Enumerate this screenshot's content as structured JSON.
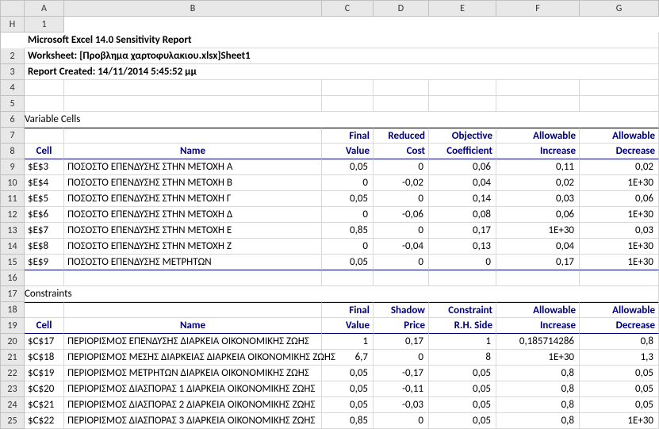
{
  "cols": [
    "A",
    "B",
    "C",
    "D",
    "E",
    "F",
    "G",
    "H"
  ],
  "title1": "Microsoft Excel 14.0 Sensitivity Report",
  "title2": "Worksheet: [Προβλημα χαρτοφυλακιου.xlsx]Sheet1",
  "title3": "Report Created: 14/11/2014 5:45:52 μμ",
  "sec1": "Variable Cells",
  "sec2": "Constraints",
  "h1": {
    "cell": "Cell",
    "name": "Name",
    "fv": "Final",
    "fv2": "Value",
    "rc": "Reduced",
    "rc2": "Cost",
    "oc": "Objective",
    "oc2": "Coefficient",
    "ai": "Allowable",
    "ai2": "Increase",
    "ad": "Allowable",
    "ad2": "Decrease"
  },
  "h2": {
    "cell": "Cell",
    "name": "Name",
    "fv": "Final",
    "fv2": "Value",
    "sp": "Shadow",
    "sp2": "Price",
    "cr": "Constraint",
    "cr2": "R.H. Side",
    "ai": "Allowable",
    "ai2": "Increase",
    "ad": "Allowable",
    "ad2": "Decrease"
  },
  "vcells": [
    {
      "r": "9",
      "cell": "$E$3",
      "name": "ΠΟΣΟΣΤΟ ΕΠΕΝΔΥΣΗΣ ΣΤΗΝ ΜΕΤΟΧΗ Α",
      "fv": "0,05",
      "rc": "0",
      "oc": "0,06",
      "ai": "0,11",
      "ad": "0,02"
    },
    {
      "r": "10",
      "cell": "$E$4",
      "name": "ΠΟΣΟΣΤΟ ΕΠΕΝΔΥΣΗΣ ΣΤΗΝ ΜΕΤΟΧΗ Β",
      "fv": "0",
      "rc": "-0,02",
      "oc": "0,04",
      "ai": "0,02",
      "ad": "1E+30"
    },
    {
      "r": "11",
      "cell": "$E$5",
      "name": "ΠΟΣΟΣΤΟ ΕΠΕΝΔΥΣΗΣ ΣΤΗΝ ΜΕΤΟΧΗ Γ",
      "fv": "0,05",
      "rc": "0",
      "oc": "0,14",
      "ai": "0,03",
      "ad": "0,06"
    },
    {
      "r": "12",
      "cell": "$E$6",
      "name": "ΠΟΣΟΣΤΟ ΕΠΕΝΔΥΣΗΣ ΣΤΗΝ ΜΕΤΟΧΗ Δ",
      "fv": "0",
      "rc": "-0,06",
      "oc": "0,08",
      "ai": "0,06",
      "ad": "1E+30"
    },
    {
      "r": "13",
      "cell": "$E$7",
      "name": "ΠΟΣΟΣΤΟ ΕΠΕΝΔΥΣΗΣ ΣΤΗΝ ΜΕΤΟΧΗ Ε",
      "fv": "0,85",
      "rc": "0",
      "oc": "0,17",
      "ai": "1E+30",
      "ad": "0,03"
    },
    {
      "r": "14",
      "cell": "$E$8",
      "name": "ΠΟΣΟΣΤΟ ΕΠΕΝΔΥΣΗΣ ΣΤΗΝ ΜΕΤΟΧΗ Ζ",
      "fv": "0",
      "rc": "-0,04",
      "oc": "0,13",
      "ai": "0,04",
      "ad": "1E+30"
    },
    {
      "r": "15",
      "cell": "$E$9",
      "name": "ΠΟΣΟΣΤΟ ΕΠΕΝΔΥΣΗΣ ΜΕΤΡΗΤΩΝ",
      "fv": "0,05",
      "rc": "0",
      "oc": "0",
      "ai": "0,17",
      "ad": "1E+30"
    }
  ],
  "constraints": [
    {
      "r": "20",
      "cell": "$C$17",
      "name": "ΠΕΡΙΟΡΙΣΜΟΣ ΕΠΕΝΔΥΣΗΣ ΔΙΑΡΚΕΙΑ ΟΙΚΟΝΟΜΙΚΗΣ ΖΩΗΣ",
      "fv": "1",
      "sp": "0,17",
      "cr": "1",
      "ai": "0,185714286",
      "ad": "0,8"
    },
    {
      "r": "21",
      "cell": "$C$18",
      "name": "ΠΕΡΙΟΡΙΣΜΟΣ ΜΕΣΗΣ ΔΙΑΡΚΕΙΑΣ ΔΙΑΡΚΕΙΑ ΟΙΚΟΝΟΜΙΚΗΣ ΖΩΗΣ",
      "fv": "6,7",
      "sp": "0",
      "cr": "8",
      "ai": "1E+30",
      "ad": "1,3"
    },
    {
      "r": "22",
      "cell": "$C$19",
      "name": "ΠΕΡΙΟΡΙΣΜΟΣ ΜΕΤΡΗΤΩΝ ΔΙΑΡΚΕΙΑ ΟΙΚΟΝΟΜΙΚΗΣ ΖΩΗΣ",
      "fv": "0,05",
      "sp": "-0,17",
      "cr": "0,05",
      "ai": "0,8",
      "ad": "0,05"
    },
    {
      "r": "23",
      "cell": "$C$20",
      "name": "ΠΕΡΙΟΡΙΣΜΟΣ ΔΙΑΣΠΟΡΑΣ 1 ΔΙΑΡΚΕΙΑ ΟΙΚΟΝΟΜΙΚΗΣ ΖΩΗΣ",
      "fv": "0,05",
      "sp": "-0,11",
      "cr": "0,05",
      "ai": "0,8",
      "ad": "0,05"
    },
    {
      "r": "24",
      "cell": "$C$21",
      "name": "ΠΕΡΙΟΡΙΣΜΟΣ ΔΙΑΣΠΟΡΑΣ 2 ΔΙΑΡΚΕΙΑ ΟΙΚΟΝΟΜΙΚΗΣ ΖΩΗΣ",
      "fv": "0,05",
      "sp": "-0,03",
      "cr": "0,05",
      "ai": "0,8",
      "ad": "0,05"
    },
    {
      "r": "25",
      "cell": "$C$22",
      "name": "ΠΕΡΙΟΡΙΣΜΟΣ ΔΙΑΣΠΟΡΑΣ 3 ΔΙΑΡΚΕΙΑ ΟΙΚΟΝΟΜΙΚΗΣ ΖΩΗΣ",
      "fv": "0,85",
      "sp": "0",
      "cr": "0,05",
      "ai": "0,8",
      "ad": "1E+30"
    }
  ]
}
